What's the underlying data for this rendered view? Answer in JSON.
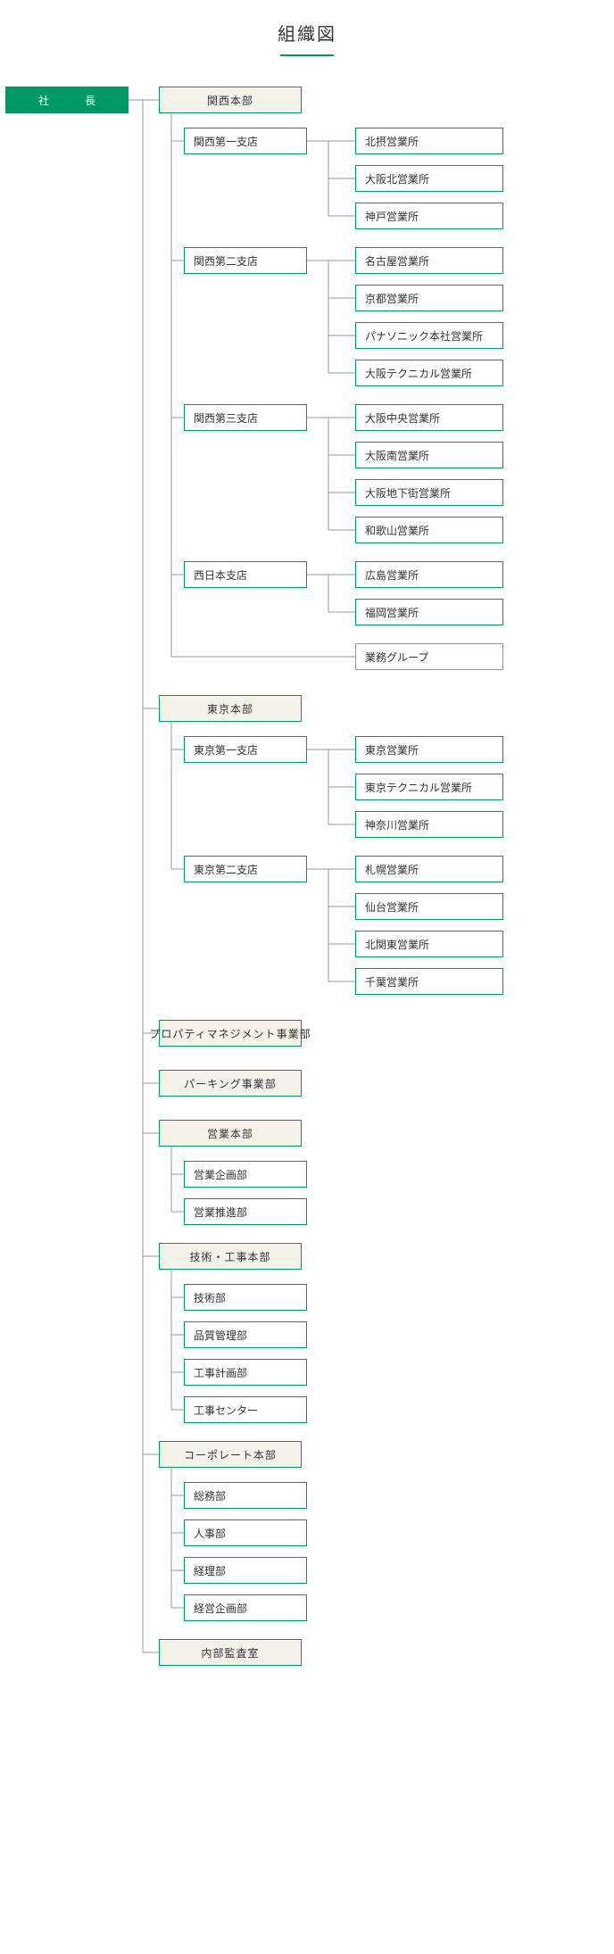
{
  "title": "組織図",
  "colors": {
    "accent": "#009966",
    "divisionBg": "#f5f2ea",
    "white": "#ffffff",
    "line": "#999999",
    "text": "#333333"
  },
  "root": {
    "label": "社　長"
  },
  "divisions": [
    {
      "label": "関西本部",
      "children": [
        {
          "label": "関西第一支店",
          "offices": [
            "北摂営業所",
            "大阪北営業所",
            "神戸営業所"
          ]
        },
        {
          "label": "関西第二支店",
          "offices": [
            "名古屋営業所",
            "京都営業所",
            "パナソニック本社営業所",
            "大阪テクニカル営業所"
          ]
        },
        {
          "label": "関西第三支店",
          "offices": [
            "大阪中央営業所",
            "大阪南営業所",
            "大阪地下街営業所",
            "和歌山営業所"
          ]
        },
        {
          "label": "西日本支店",
          "offices": [
            "広島営業所",
            "福岡営業所"
          ]
        }
      ],
      "group": "業務グループ"
    },
    {
      "label": "東京本部",
      "children": [
        {
          "label": "東京第一支店",
          "offices": [
            "東京営業所",
            "東京テクニカル営業所",
            "神奈川営業所"
          ]
        },
        {
          "label": "東京第二支店",
          "offices": [
            "札幌営業所",
            "仙台営業所",
            "北関東営業所",
            "千葉営業所"
          ]
        }
      ]
    },
    {
      "label": "プロパティマネジメント事業部"
    },
    {
      "label": "パーキング事業部"
    },
    {
      "label": "営業本部",
      "children": [
        {
          "label": "営業企画部"
        },
        {
          "label": "営業推進部"
        }
      ]
    },
    {
      "label": "技術・工事本部",
      "children": [
        {
          "label": "技術部"
        },
        {
          "label": "品質管理部"
        },
        {
          "label": "工事計画部"
        },
        {
          "label": "工事センター"
        }
      ]
    },
    {
      "label": "コーポレート本部",
      "children": [
        {
          "label": "総務部"
        },
        {
          "label": "人事部"
        },
        {
          "label": "経理部"
        },
        {
          "label": "経営企画部"
        }
      ]
    },
    {
      "label": "内部監査室"
    }
  ]
}
